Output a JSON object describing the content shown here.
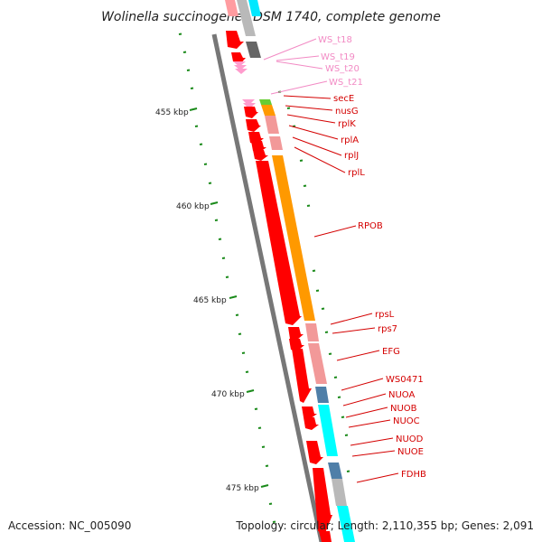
{
  "title": "Wolinella succinogenes DSM 1740, complete genome",
  "footer": {
    "accession": "Accession: NC_005090",
    "topology": "Topology: circular; Length: 2,110,355 bp; Genes: 2,091"
  },
  "ruler": [
    "455 kbp",
    "460 kbp",
    "465 kbp",
    "470 kbp",
    "475 kbp"
  ],
  "colors": {
    "backbone": "#808080",
    "rna": "#ff9ccd",
    "label_red": "#d40000",
    "label_pink": "#f28ac4",
    "gc_tick": "#1a8a1a",
    "cds_red": "#ff0000",
    "orange": "#ff9900",
    "cyan": "#00ffff",
    "steel": "#4f7fa8",
    "gray": "#b9b9b9",
    "pink_block": "#f29999"
  },
  "gene_labels": [
    {
      "name": "WS_t18",
      "kind": "rna"
    },
    {
      "name": "WS_t19",
      "kind": "rna"
    },
    {
      "name": "WS_t20",
      "kind": "rna"
    },
    {
      "name": "WS_t21",
      "kind": "rna"
    },
    {
      "name": "secE",
      "kind": "cds"
    },
    {
      "name": "nusG",
      "kind": "cds"
    },
    {
      "name": "rplK",
      "kind": "cds"
    },
    {
      "name": "rplA",
      "kind": "cds"
    },
    {
      "name": "rplJ",
      "kind": "cds"
    },
    {
      "name": "rplL",
      "kind": "cds"
    },
    {
      "name": "RPOB",
      "kind": "cds"
    },
    {
      "name": "rpsL",
      "kind": "cds"
    },
    {
      "name": "rps7",
      "kind": "cds"
    },
    {
      "name": "EFG",
      "kind": "cds"
    },
    {
      "name": "WS0471",
      "kind": "cds"
    },
    {
      "name": "NUOA",
      "kind": "cds"
    },
    {
      "name": "NUOB",
      "kind": "cds"
    },
    {
      "name": "NUOC",
      "kind": "cds"
    },
    {
      "name": "NUOD",
      "kind": "cds"
    },
    {
      "name": "NUOE",
      "kind": "cds"
    },
    {
      "name": "FDHB",
      "kind": "cds"
    }
  ]
}
